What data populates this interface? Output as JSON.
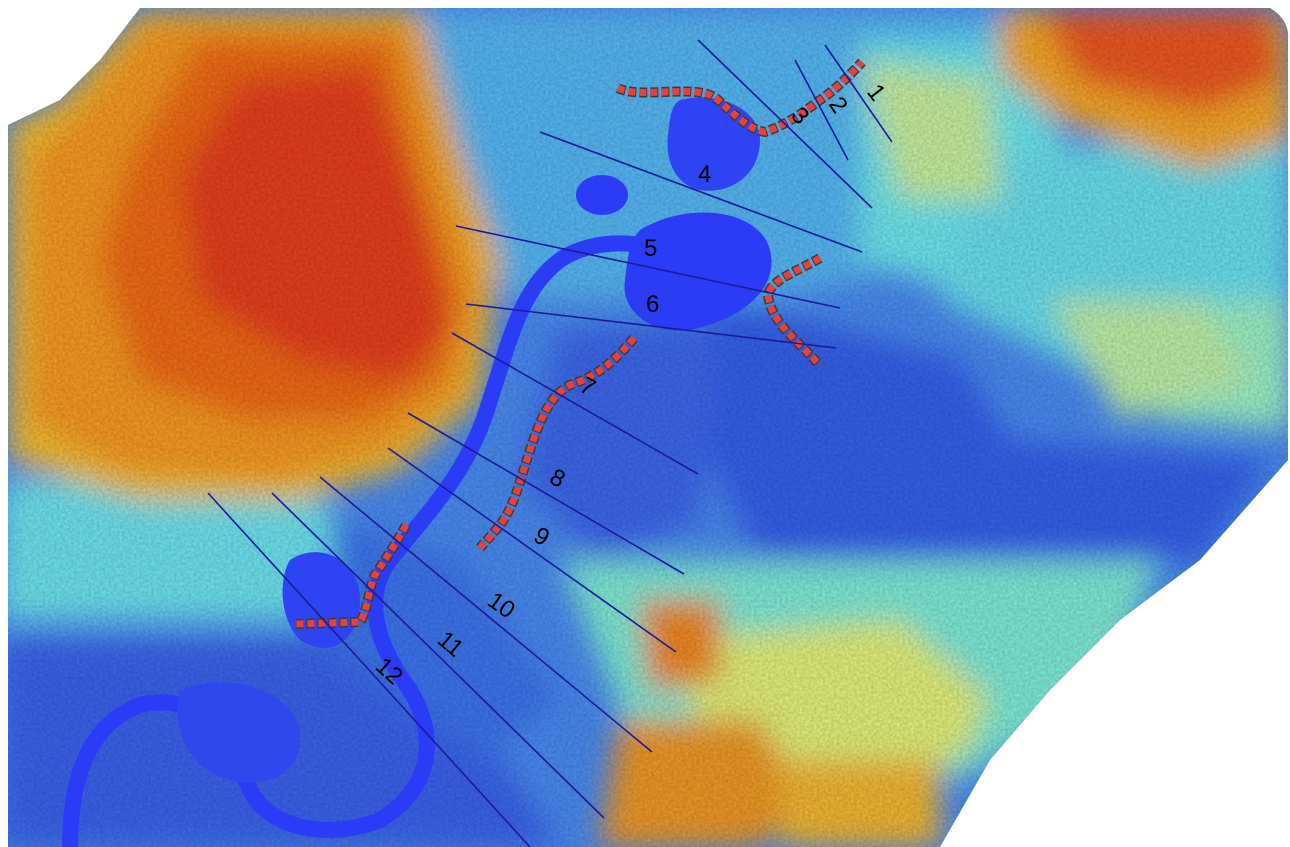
{
  "map": {
    "colors": {
      "background": "#ffffff",
      "water_channel": "#2a3cf5",
      "low_value": "#3a6ef2",
      "mid_low": "#46c8f5",
      "mid": "#6ef0e6",
      "mid_high": "#f4f05a",
      "high": "#f8a020",
      "highest": "#e81a0c",
      "transect_line": "#1a1a9c",
      "levee_marker": "#e8403a",
      "levee_marker_edge": "#3a3a3a"
    },
    "cross_sections": [
      {
        "id": "xs-1",
        "label": "1"
      },
      {
        "id": "xs-2",
        "label": "2"
      },
      {
        "id": "xs-3",
        "label": "3"
      },
      {
        "id": "xs-4",
        "label": "4"
      },
      {
        "id": "xs-5",
        "label": "5"
      },
      {
        "id": "xs-6",
        "label": "6"
      },
      {
        "id": "xs-7",
        "label": "7"
      },
      {
        "id": "xs-8",
        "label": "8"
      },
      {
        "id": "xs-9",
        "label": "9"
      },
      {
        "id": "xs-10",
        "label": "10"
      },
      {
        "id": "xs-11",
        "label": "11"
      },
      {
        "id": "xs-12",
        "label": "12"
      }
    ]
  }
}
